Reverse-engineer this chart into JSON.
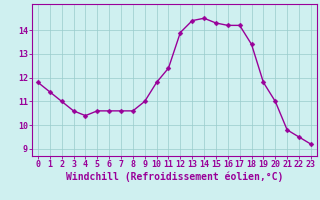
{
  "x": [
    0,
    1,
    2,
    3,
    4,
    5,
    6,
    7,
    8,
    9,
    10,
    11,
    12,
    13,
    14,
    15,
    16,
    17,
    18,
    19,
    20,
    21,
    22,
    23
  ],
  "y": [
    11.8,
    11.4,
    11.0,
    10.6,
    10.4,
    10.6,
    10.6,
    10.6,
    10.6,
    11.0,
    11.8,
    12.4,
    13.9,
    14.4,
    14.5,
    14.3,
    14.2,
    14.2,
    13.4,
    11.8,
    11.0,
    9.8,
    9.5,
    9.2
  ],
  "line_color": "#990099",
  "marker": "D",
  "marker_size": 2.5,
  "linewidth": 1.0,
  "bg_color": "#cff0f0",
  "grid_color": "#99cccc",
  "xlabel": "Windchill (Refroidissement éolien,°C)",
  "xlabel_fontsize": 7,
  "tick_fontsize": 6,
  "yticks": [
    9,
    10,
    11,
    12,
    13,
    14
  ],
  "ylim": [
    8.7,
    15.1
  ],
  "xlim": [
    -0.5,
    23.5
  ],
  "axis_color": "#990099",
  "label_color": "#990099"
}
